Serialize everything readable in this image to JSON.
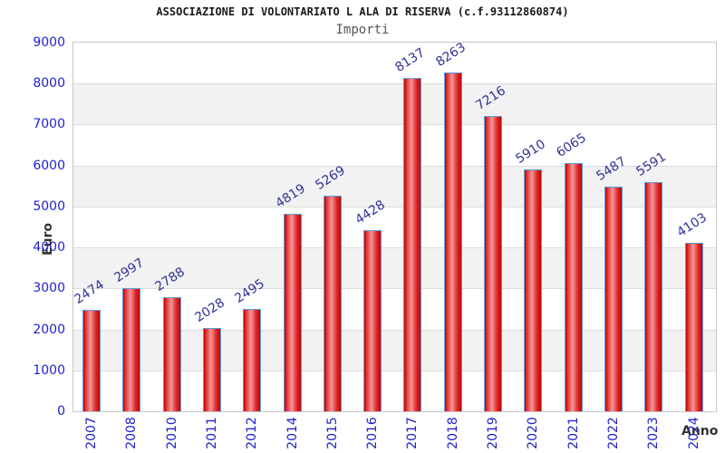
{
  "page": {
    "background": "#ffffff"
  },
  "chart_data": {
    "type": "bar",
    "title": "ASSOCIAZIONE DI VOLONTARIATO L ALA DI RISERVA (c.f.93112860874)",
    "subtitle": "Importi",
    "xlabel": "Anno",
    "ylabel": "Euro",
    "categories": [
      "2007",
      "2008",
      "2010",
      "2011",
      "2012",
      "2014",
      "2015",
      "2016",
      "2017",
      "2018",
      "2019",
      "2020",
      "2021",
      "2022",
      "2023",
      "2024"
    ],
    "values": [
      2474,
      2997,
      2788,
      2028,
      2495,
      4819,
      5269,
      4428,
      8137,
      8263,
      7216,
      5910,
      6065,
      5487,
      5591,
      4103
    ],
    "ylim": [
      0,
      9000
    ],
    "ytick_step": 1000,
    "grid": "horizontal-alternating-bands",
    "legend_position": "none",
    "colors": {
      "axis_label_blue": "#2222cc",
      "value_label_navy": "#333399",
      "bar_border": "#5b9fe0",
      "bar_gradient": [
        "#c00000",
        "#e83535",
        "#f09898",
        "#e02828",
        "#bd0505"
      ],
      "band_alt": "#f2f2f2",
      "gridline": "#dcdcdc",
      "plot_border": "#c6c6c6",
      "title_color": "#1a1a1a",
      "subtitle_color": "#555555",
      "axis_title_color": "#333333"
    }
  }
}
